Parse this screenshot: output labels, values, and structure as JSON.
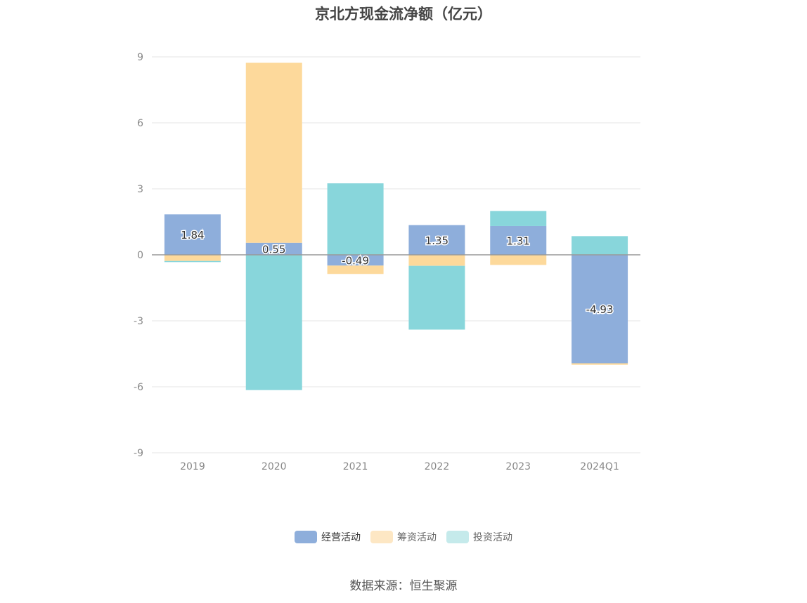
{
  "chart_data": {
    "type": "bar",
    "stacked": true,
    "title": "京北方现金流净额（亿元）",
    "categories": [
      "2019",
      "2020",
      "2021",
      "2022",
      "2023",
      "2024Q1"
    ],
    "ylim": [
      -9,
      9
    ],
    "yticks": [
      9,
      6,
      3,
      0,
      -3,
      -6,
      -9
    ],
    "ytick_labels": [
      "9",
      "6",
      "3",
      "0",
      "-3",
      "-6",
      "-9"
    ],
    "series": [
      {
        "name": "经营活动",
        "color": "#8eaedb",
        "legend_color": "#8eaedb",
        "values": [
          1.84,
          0.55,
          -0.49,
          1.35,
          1.31,
          -4.93
        ]
      },
      {
        "name": "筹资活动",
        "color": "#fdd99b",
        "legend_color": "#fde7c4",
        "values": [
          -0.28,
          8.18,
          -0.38,
          -0.5,
          -0.46,
          -0.07
        ]
      },
      {
        "name": "投资活动",
        "color": "#88d6db",
        "legend_color": "#c5eaeb",
        "values": [
          -0.05,
          -6.15,
          3.25,
          -2.9,
          0.68,
          0.85
        ]
      }
    ],
    "data_labels": [
      "1.84",
      "0.55",
      "-0.49",
      "1.35",
      "1.31",
      "-4.93"
    ],
    "legend_position": "bottom"
  },
  "source": "数据来源：恒生聚源"
}
